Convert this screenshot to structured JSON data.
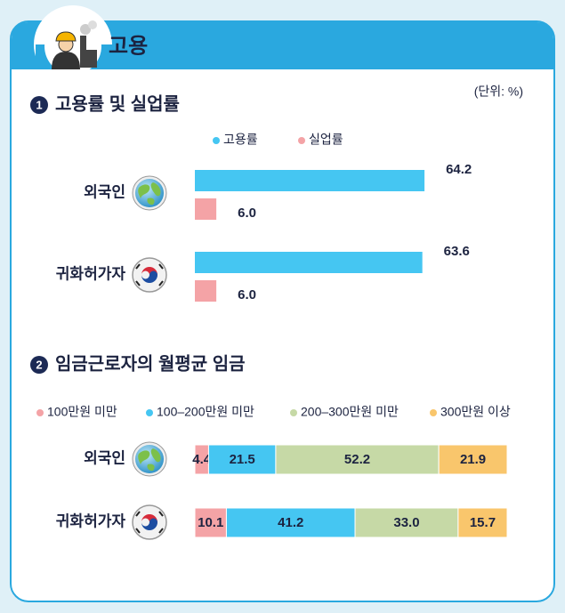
{
  "header": {
    "title": "고용"
  },
  "chart_data": [
    {
      "type": "bar",
      "number": 1,
      "title": "고용률 및 실업률",
      "unit_note": "(단위: %)",
      "categories": [
        "외국인",
        "귀화허가자"
      ],
      "series": [
        {
          "name": "고용률",
          "color": "#45c6f2",
          "values": [
            64.2,
            63.6
          ]
        },
        {
          "name": "실업률",
          "color": "#f4a3a6",
          "values": [
            6.0,
            6.0
          ],
          "value_labels": [
            "6.0",
            "6.0"
          ]
        }
      ]
    },
    {
      "type": "stacked_bar",
      "number": 2,
      "title": "임금근로자의 월평균 임금",
      "categories": [
        "외국인",
        "귀화허가자"
      ],
      "series": [
        {
          "name": "100만원 미만",
          "color": "#f4a3a6",
          "values": [
            4.4,
            10.1
          ]
        },
        {
          "name": "100–200만원 미만",
          "color": "#45c6f2",
          "values": [
            21.5,
            41.2
          ]
        },
        {
          "name": "200–300만원 미만",
          "color": "#c6d9a6",
          "values": [
            52.2,
            33.0
          ],
          "value_labels": [
            "52.2",
            "33.0"
          ]
        },
        {
          "name": "300만원 이상",
          "color": "#f9c66c",
          "values": [
            21.9,
            15.7
          ]
        }
      ]
    }
  ]
}
